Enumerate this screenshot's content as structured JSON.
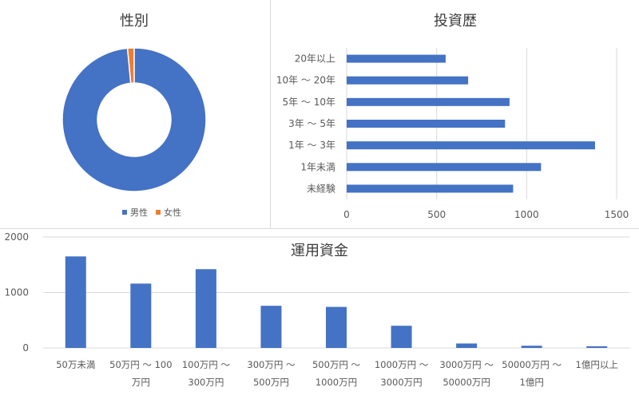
{
  "chart_data": [
    {
      "type": "pie",
      "variant": "donut",
      "title": "性別",
      "categories": [
        "男性",
        "女性"
      ],
      "values": [
        98.5,
        1.5
      ],
      "colors": [
        "#4472C4",
        "#ED7D31"
      ],
      "legend": "bottom"
    },
    {
      "type": "bar",
      "orientation": "horizontal",
      "title": "投資歴",
      "categories": [
        "20年以上",
        "10年 ～ 20年",
        "5年 ～ 10年",
        "3年 ～ 5年",
        "1年 ～ 3年",
        "1年未満",
        "未経験"
      ],
      "values": [
        550,
        675,
        905,
        880,
        1380,
        1080,
        925
      ],
      "xlim": [
        0,
        1500
      ],
      "xticks": [
        "0",
        "500",
        "1000",
        "1500"
      ],
      "grid": true,
      "color": "#4472C4"
    },
    {
      "type": "bar",
      "title": "運用資金",
      "categories": [
        [
          "50万未満"
        ],
        [
          "50万円 ～ 100",
          "万円"
        ],
        [
          "100万円 ～",
          "300万円"
        ],
        [
          "300万円 ～",
          "500万円"
        ],
        [
          "500万円 ～",
          "1000万円"
        ],
        [
          "1000万円 ～",
          "3000万円"
        ],
        [
          "3000万円 ～",
          "50000万円"
        ],
        [
          "50000万円 ～",
          "1億円"
        ],
        [
          "1億円以上"
        ]
      ],
      "values": [
        1650,
        1160,
        1420,
        760,
        740,
        400,
        80,
        40,
        30
      ],
      "ylim": [
        0,
        2000
      ],
      "yticks": [
        "0",
        "1000",
        "2000"
      ],
      "grid": true,
      "color": "#4472C4"
    }
  ]
}
